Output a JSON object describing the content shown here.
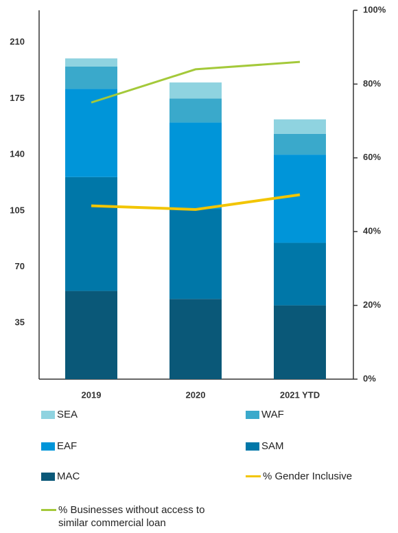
{
  "chart_data": {
    "type": "bar",
    "categories": [
      "2019",
      "2020",
      "2021 YTD"
    ],
    "ylim": [
      0,
      230
    ],
    "yticks": [
      35,
      70,
      105,
      140,
      175,
      210
    ],
    "y2lim": [
      0,
      100
    ],
    "y2ticks": [
      {
        "value": 0,
        "label": "0%"
      },
      {
        "value": 20,
        "label": "20%"
      },
      {
        "value": 40,
        "label": "40%"
      },
      {
        "value": 60,
        "label": "60%"
      },
      {
        "value": 80,
        "label": "80%"
      },
      {
        "value": 100,
        "label": "100%"
      }
    ],
    "series": [
      {
        "name": "SEA",
        "color": "#8fd3e0",
        "values": [
          5,
          10,
          9
        ]
      },
      {
        "name": "WAF",
        "color": "#3aa9cb",
        "values": [
          14,
          15,
          13
        ]
      },
      {
        "name": "EAF",
        "color": "#0095d9",
        "values": [
          55,
          54,
          55
        ]
      },
      {
        "name": "SAM",
        "color": "#0077a8",
        "values": [
          71,
          56,
          39
        ]
      },
      {
        "name": "MAC",
        "color": "#0a5878",
        "values": [
          55,
          50,
          46
        ]
      },
      {
        "name": "% Gender Inclusive",
        "color": "#f2c500",
        "axis": "y2",
        "values": [
          47,
          46,
          50
        ]
      },
      {
        "name": "% Businesses without access to similar commercial loan",
        "color": "#a4c93a",
        "axis": "y2",
        "values": [
          75,
          84,
          86
        ]
      }
    ]
  }
}
